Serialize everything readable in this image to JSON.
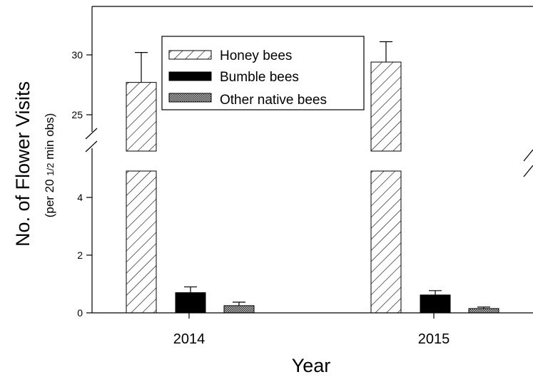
{
  "chart_data": {
    "type": "bar",
    "categories": [
      "2014",
      "2015"
    ],
    "series": [
      {
        "name": "Honey bees",
        "values": [
          27.7,
          29.4
        ],
        "errors": [
          2.5,
          1.7
        ],
        "pattern": "diagonal-hatch"
      },
      {
        "name": "Bumble bees",
        "values": [
          0.7,
          0.62
        ],
        "errors": [
          0.2,
          0.15
        ],
        "pattern": "solid-black"
      },
      {
        "name": "Other native bees",
        "values": [
          0.25,
          0.15
        ],
        "errors": [
          0.12,
          0.05
        ],
        "pattern": "crosshatch"
      }
    ],
    "xlabel": "Year",
    "ylabel": "No. of Flower Visits",
    "ylabel_prefix": "(per 20",
    "ylabel_sub": "1/2",
    "ylabel_suffix": "min obs)",
    "y_segments": [
      {
        "range": [
          0,
          5
        ],
        "ticks": [
          "0",
          "2",
          "4"
        ]
      },
      {
        "range": [
          22,
          34
        ],
        "ticks": [
          "25",
          "30"
        ]
      }
    ],
    "axis_break": true,
    "grid": false,
    "legend_position": "top-center"
  }
}
